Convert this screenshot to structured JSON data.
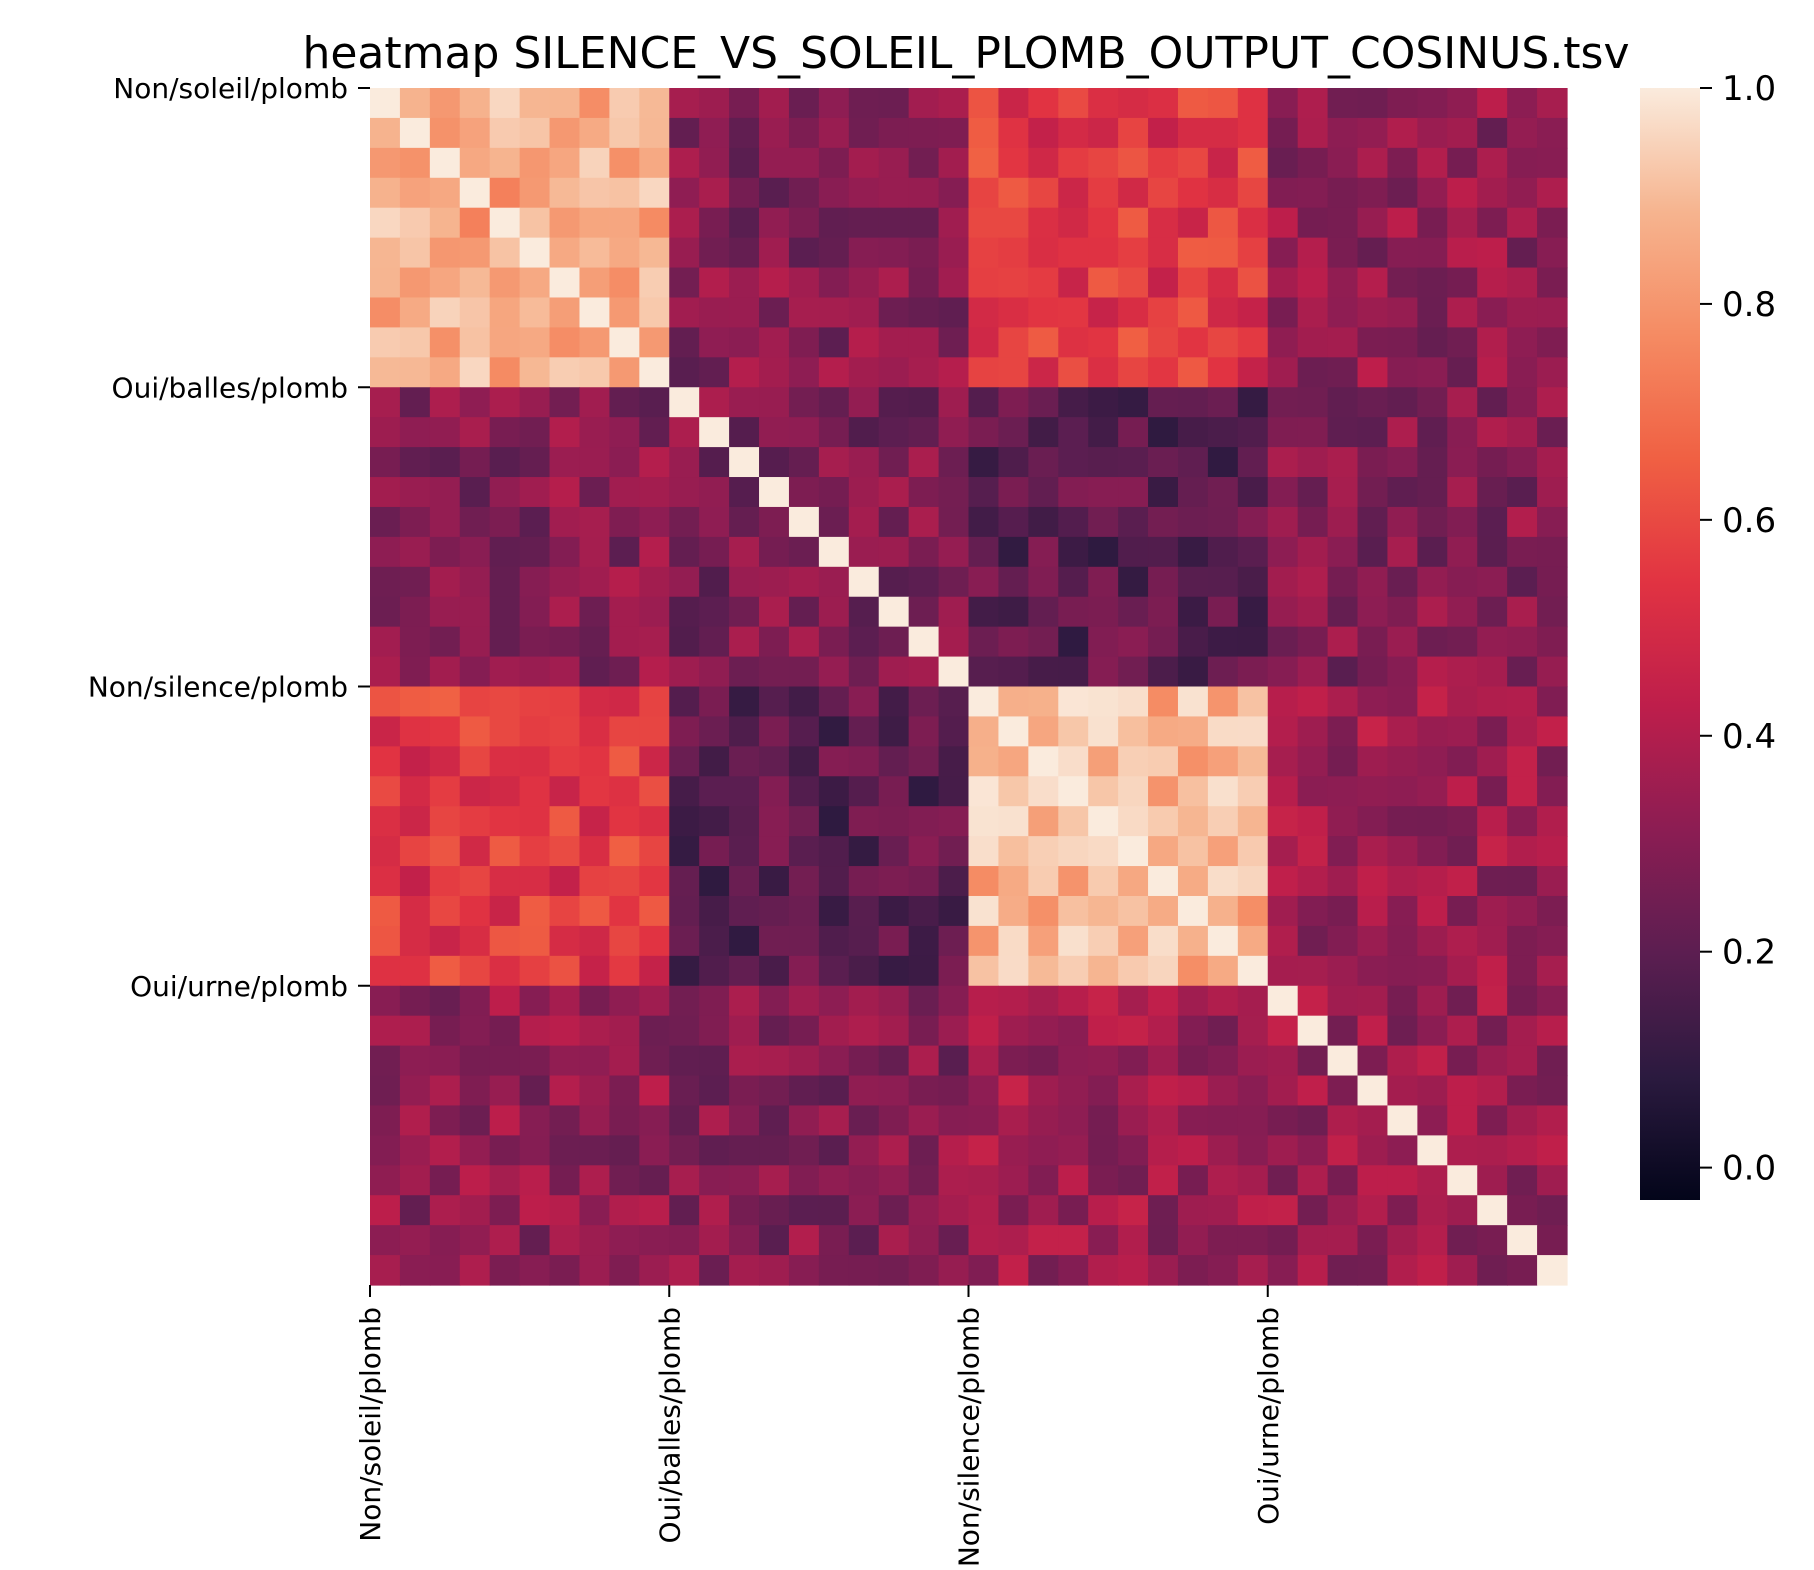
{
  "chart_data": {
    "type": "heatmap",
    "title": "heatmap SILENCE_VS_SOLEIL_PLOMB_OUTPUT_COSINUS.tsv",
    "size": 40,
    "groups": [
      {
        "label": "Non/soleil/plomb",
        "start": 0,
        "count": 10
      },
      {
        "label": "Oui/balles/plomb",
        "start": 10,
        "count": 10
      },
      {
        "label": "Non/silence/plomb",
        "start": 20,
        "count": 10
      },
      {
        "label": "Oui/urne/plomb",
        "start": 30,
        "count": 10
      }
    ],
    "x_tick_labels": [
      "Non/soleil/plomb",
      "Oui/balles/plomb",
      "Non/silence/plomb",
      "Oui/urne/plomb"
    ],
    "y_tick_labels": [
      "Non/soleil/plomb",
      "Oui/balles/plomb",
      "Non/silence/plomb",
      "Oui/urne/plomb"
    ],
    "block_levels": [
      [
        0.85,
        0.3,
        0.55,
        0.32
      ],
      [
        0.3,
        0.28,
        0.2,
        0.3
      ],
      [
        0.55,
        0.2,
        0.88,
        0.35
      ],
      [
        0.32,
        0.3,
        0.35,
        0.35
      ]
    ],
    "diagonal": 1.0,
    "colorbar": {
      "vmin": -0.03,
      "vmax": 1.0,
      "ticks": [
        "0.0",
        "0.2",
        "0.4",
        "0.6",
        "0.8",
        "1.0"
      ],
      "tick_values": [
        0.0,
        0.2,
        0.4,
        0.6,
        0.8,
        1.0
      ]
    },
    "colormap": "rocket",
    "colormap_stops": [
      "#03051a",
      "#2b1a3f",
      "#5c1e51",
      "#8c1d53",
      "#be1e4b",
      "#e13342",
      "#f06043",
      "#f58b63",
      "#f6b48f",
      "#faebdd"
    ]
  }
}
